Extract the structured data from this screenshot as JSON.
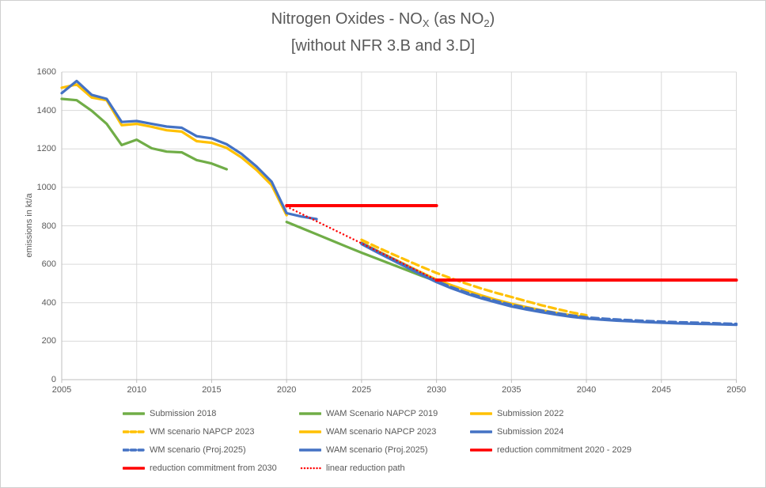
{
  "title": {
    "line1_prefix": "Nitrogen Oxides - NO",
    "line1_sub1": "X",
    "line1_mid": " (as NO",
    "line1_sub2": "2",
    "line1_suffix": ")",
    "line2": "[without NFR 3.B and 3.D]"
  },
  "y_axis": {
    "label": "emissions in kt/a",
    "ticks": [
      0,
      200,
      400,
      600,
      800,
      1000,
      1200,
      1400,
      1600
    ]
  },
  "x_axis": {
    "ticks": [
      2005,
      2010,
      2015,
      2020,
      2025,
      2030,
      2035,
      2040,
      2045,
      2050
    ]
  },
  "colors": {
    "green": "#70AD47",
    "yellow": "#FFC000",
    "blue": "#4472C4",
    "red": "#FF0000",
    "gridline": "#D9D9D9",
    "axis_line": "#BFBFBF",
    "text": "#595959"
  },
  "chart_data": {
    "type": "line",
    "title": "Nitrogen Oxides - NOX (as NO2) [without NFR 3.B and 3.D]",
    "xlabel": "",
    "ylabel": "emissions in kt/a",
    "xlim": [
      2005,
      2050
    ],
    "ylim": [
      0,
      1600
    ],
    "grid": true,
    "legend_position": "bottom",
    "series": [
      {
        "name": "WAM Scenario NAPCP 2019",
        "color": "#70AD47",
        "dash": "solid",
        "width": 3.2,
        "x": [
          2020,
          2021,
          2022,
          2023,
          2024,
          2025,
          2026,
          2027,
          2028,
          2029,
          2030
        ],
        "y": [
          820,
          788,
          756,
          724,
          692,
          660,
          630,
          600,
          570,
          540,
          512
        ]
      },
      {
        "name": "Submission 2018",
        "color": "#70AD47",
        "dash": "solid",
        "width": 3.2,
        "x": [
          2005,
          2006,
          2007,
          2008,
          2009,
          2010,
          2011,
          2012,
          2013,
          2014,
          2015,
          2016
        ],
        "y": [
          1460,
          1453,
          1398,
          1330,
          1220,
          1248,
          1203,
          1186,
          1182,
          1142,
          1124,
          1094
        ]
      },
      {
        "name": "Submission 2022",
        "color": "#FFC000",
        "dash": "solid",
        "width": 3.2,
        "x": [
          2005,
          2006,
          2007,
          2008,
          2009,
          2010,
          2011,
          2012,
          2013,
          2014,
          2015,
          2016,
          2017,
          2018,
          2019,
          2020
        ],
        "y": [
          1518,
          1535,
          1467,
          1453,
          1323,
          1330,
          1315,
          1297,
          1290,
          1240,
          1232,
          1205,
          1155,
          1090,
          1012,
          855
        ]
      },
      {
        "name": "Submission 2024",
        "color": "#4472C4",
        "dash": "solid",
        "width": 3.2,
        "x": [
          2005,
          2006,
          2007,
          2008,
          2009,
          2010,
          2011,
          2012,
          2013,
          2014,
          2015,
          2016,
          2017,
          2018,
          2019,
          2020,
          2021,
          2022
        ],
        "y": [
          1490,
          1553,
          1481,
          1460,
          1340,
          1345,
          1330,
          1316,
          1310,
          1266,
          1255,
          1224,
          1174,
          1108,
          1030,
          866,
          848,
          835
        ]
      },
      {
        "name": "WAM scenario NAPCP 2023",
        "color": "#FFC000",
        "dash": "solid",
        "width": 3.2,
        "x": [
          2025,
          2026,
          2027,
          2028,
          2029,
          2030,
          2031,
          2032,
          2033,
          2034,
          2035,
          2036,
          2037,
          2038,
          2039,
          2040
        ],
        "y": [
          713,
          673,
          634,
          595,
          557,
          520,
          491,
          464,
          438,
          415,
          395,
          377,
          361,
          347,
          335,
          325
        ]
      },
      {
        "name": "WM scenario NAPCP 2023",
        "color": "#FFC000",
        "dash": "dashed",
        "width": 3.2,
        "x": [
          2025,
          2026,
          2027,
          2028,
          2029,
          2030,
          2031,
          2032,
          2033,
          2034,
          2035,
          2036,
          2037,
          2038,
          2039,
          2040
        ],
        "y": [
          727,
          690,
          655,
          621,
          587,
          555,
          526,
          499,
          474,
          451,
          430,
          408,
          387,
          368,
          350,
          335
        ]
      },
      {
        "name": "WAM scenario (Proj.2025)",
        "color": "#4472C4",
        "dash": "solid",
        "width": 3.2,
        "x": [
          2025,
          2026,
          2027,
          2028,
          2029,
          2030,
          2031,
          2032,
          2033,
          2034,
          2035,
          2036,
          2037,
          2038,
          2039,
          2040,
          2041,
          2042,
          2043,
          2044,
          2045,
          2046,
          2047,
          2048,
          2049,
          2050
        ],
        "y": [
          705,
          664,
          624,
          585,
          545,
          507,
          475,
          447,
          423,
          401,
          381,
          365,
          351,
          338,
          327,
          318,
          312,
          307,
          303,
          299,
          296,
          293,
          291,
          289,
          287,
          285
        ]
      },
      {
        "name": "WM scenario (Proj.2025)",
        "color": "#4472C4",
        "dash": "dashed",
        "width": 3.2,
        "x": [
          2025,
          2026,
          2027,
          2028,
          2029,
          2030,
          2031,
          2032,
          2033,
          2034,
          2035,
          2036,
          2037,
          2038,
          2039,
          2040,
          2041,
          2042,
          2043,
          2044,
          2045,
          2046,
          2047,
          2048,
          2049,
          2050
        ],
        "y": [
          710,
          670,
          631,
          592,
          551,
          513,
          481,
          453,
          429,
          408,
          389,
          373,
          359,
          346,
          334,
          324,
          318,
          313,
          309,
          305,
          302,
          299,
          297,
          295,
          292,
          290
        ]
      },
      {
        "name": "reduction commitment 2020 - 2029",
        "color": "#FF0000",
        "dash": "solid",
        "width": 4,
        "x": [
          2020,
          2030
        ],
        "y": [
          905,
          905
        ]
      },
      {
        "name": "reduction commitment from 2030",
        "color": "#FF0000",
        "dash": "solid",
        "width": 4,
        "x": [
          2030,
          2050
        ],
        "y": [
          518,
          518
        ]
      },
      {
        "name": "linear reduction path",
        "color": "#FF0000",
        "dash": "dotted",
        "width": 2.4,
        "x": [
          2020,
          2030
        ],
        "y": [
          900,
          518
        ]
      }
    ]
  },
  "legend": {
    "items": [
      {
        "label": "Submission 2018",
        "color": "#70AD47",
        "dash": "solid"
      },
      {
        "label": "WAM Scenario NAPCP 2019",
        "color": "#70AD47",
        "dash": "solid"
      },
      {
        "label": "Submission 2022",
        "color": "#FFC000",
        "dash": "solid"
      },
      {
        "label": "WM scenario NAPCP 2023",
        "color": "#FFC000",
        "dash": "dashed"
      },
      {
        "label": "WAM scenario NAPCP 2023",
        "color": "#FFC000",
        "dash": "solid"
      },
      {
        "label": "Submission 2024",
        "color": "#4472C4",
        "dash": "solid"
      },
      {
        "label": "WM scenario (Proj.2025)",
        "color": "#4472C4",
        "dash": "dashed"
      },
      {
        "label": "WAM scenario (Proj.2025)",
        "color": "#4472C4",
        "dash": "solid"
      },
      {
        "label": "reduction commitment 2020 - 2029",
        "color": "#FF0000",
        "dash": "solid"
      },
      {
        "label": "reduction commitment from 2030",
        "color": "#FF0000",
        "dash": "solid"
      },
      {
        "label": "linear reduction path",
        "color": "#FF0000",
        "dash": "dotted"
      }
    ]
  }
}
